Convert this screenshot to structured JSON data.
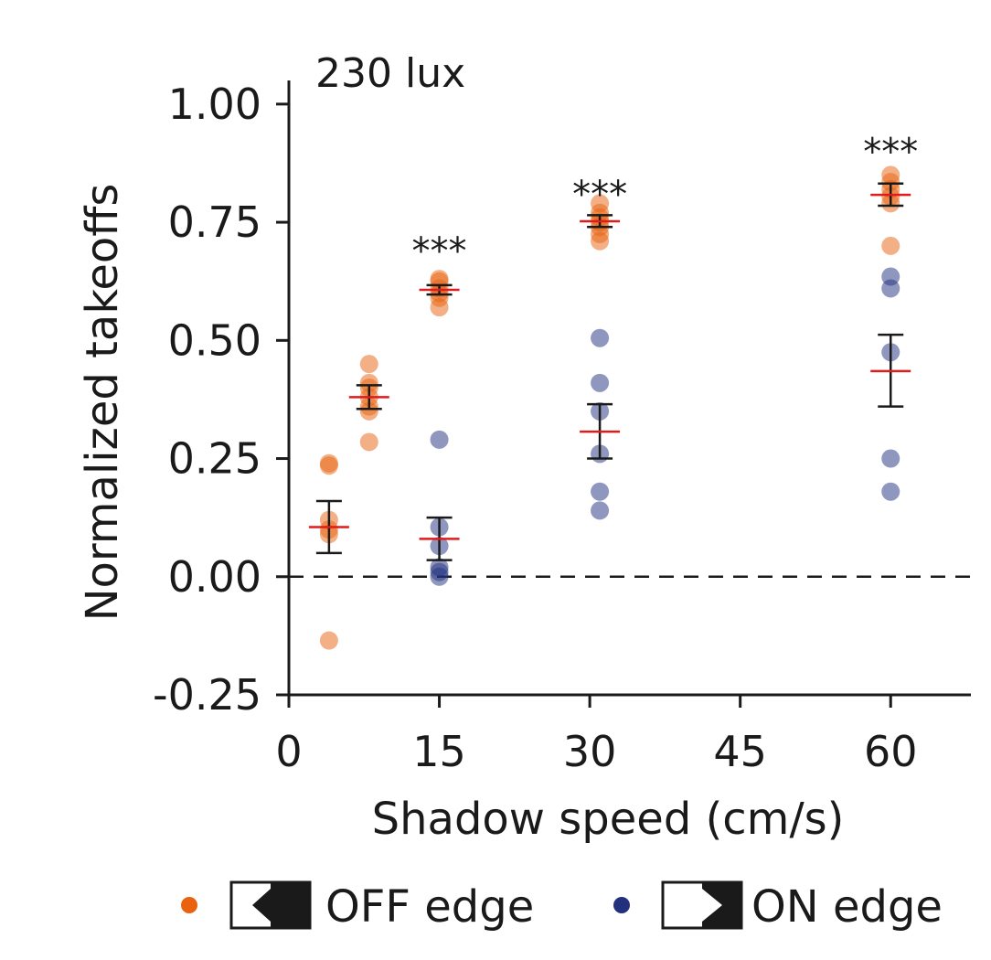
{
  "chart_data": {
    "type": "scatter",
    "annotation": "230 lux",
    "xlabel": "Shadow speed (cm/s)",
    "ylabel": "Normalized takeoffs",
    "xlim": [
      0,
      68
    ],
    "ylim": [
      -0.25,
      1.05
    ],
    "x_ticks": [
      0,
      15,
      30,
      45,
      60
    ],
    "x_tick_labels": [
      "0",
      "15",
      "30",
      "45",
      "60"
    ],
    "y_ticks": [
      -0.25,
      0,
      0.25,
      0.5,
      0.75,
      1.0
    ],
    "y_tick_labels": [
      "-0.25",
      "0.00",
      "0.25",
      "0.50",
      "0.75",
      "1.00"
    ],
    "zero_line": "dashed",
    "legend_position": "bottom",
    "series": [
      {
        "name": "OFF edge",
        "color": "#e8620f",
        "icon": "off-edge-arrow-icon",
        "points": [
          {
            "x": 4,
            "values": [
              0.24,
              0.235,
              0.12,
              0.1,
              0.09,
              -0.135
            ],
            "mean": 0.105,
            "sem_low": 0.05,
            "sem_high": 0.16
          },
          {
            "x": 8,
            "values": [
              0.45,
              0.41,
              0.4,
              0.38,
              0.36,
              0.35,
              0.285
            ],
            "mean": 0.38,
            "sem_low": 0.355,
            "sem_high": 0.405
          },
          {
            "x": 15,
            "values": [
              0.63,
              0.625,
              0.61,
              0.6,
              0.59,
              0.57
            ],
            "mean": 0.607,
            "sem_low": 0.597,
            "sem_high": 0.617
          },
          {
            "x": 31,
            "values": [
              0.79,
              0.77,
              0.76,
              0.75,
              0.74,
              0.725,
              0.71
            ],
            "mean": 0.752,
            "sem_low": 0.74,
            "sem_high": 0.765
          },
          {
            "x": 60,
            "values": [
              0.85,
              0.835,
              0.82,
              0.805,
              0.79,
              0.7
            ],
            "mean": 0.808,
            "sem_low": 0.785,
            "sem_high": 0.832
          }
        ]
      },
      {
        "name": "ON edge",
        "color": "#22307e",
        "icon": "on-edge-arrow-icon",
        "points": [
          {
            "x": 15,
            "values": [
              0.29,
              0.105,
              0.065,
              0.02,
              0.01,
              0.0
            ],
            "mean": 0.08,
            "sem_low": 0.035,
            "sem_high": 0.125
          },
          {
            "x": 31,
            "values": [
              0.505,
              0.41,
              0.35,
              0.26,
              0.18,
              0.14
            ],
            "mean": 0.307,
            "sem_low": 0.25,
            "sem_high": 0.365
          },
          {
            "x": 60,
            "values": [
              0.635,
              0.61,
              0.475,
              0.25,
              0.18
            ],
            "mean": 0.435,
            "sem_low": 0.36,
            "sem_high": 0.512
          }
        ]
      }
    ],
    "significance": [
      {
        "x": 15,
        "y": 0.69,
        "label": "***"
      },
      {
        "x": 31,
        "y": 0.81,
        "label": "***"
      },
      {
        "x": 60,
        "y": 0.9,
        "label": "***"
      }
    ]
  }
}
